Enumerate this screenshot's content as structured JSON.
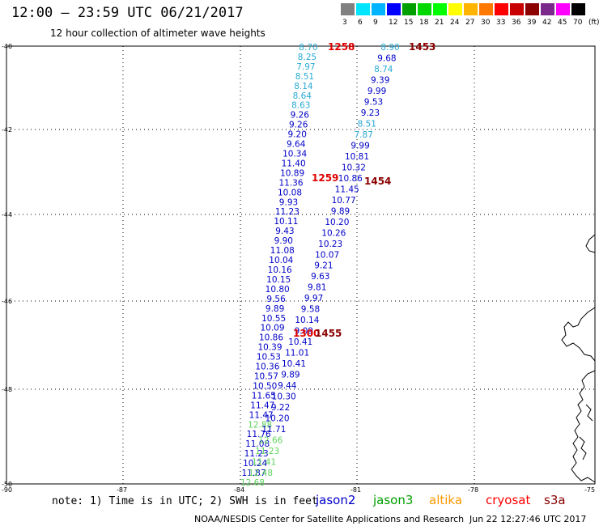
{
  "header": {
    "title": "12:00 – 23:59 UTC 06/21/2017",
    "subtitle": "12 hour collection of altimeter wave heights"
  },
  "legend": {
    "colors": [
      "#808080",
      "#00e5ff",
      "#00b4ff",
      "#0000ff",
      "#009f00",
      "#00d800",
      "#00ff00",
      "#ffff00",
      "#ffb400",
      "#ff7800",
      "#ff0000",
      "#c80000",
      "#8c0000",
      "#7a2a8a",
      "#ff00ff",
      "#000000"
    ],
    "labels": [
      "3",
      "6",
      "9",
      "12",
      "15",
      "18",
      "21",
      "24",
      "27",
      "30",
      "33",
      "36",
      "39",
      "42",
      "45",
      "70",
      "(ft)"
    ]
  },
  "axes": {
    "lat_labels": [
      "-40",
      "-42",
      "-44",
      "-46",
      "-48",
      "-50"
    ],
    "lon_labels": [
      "-90",
      "-87",
      "-84",
      "-81",
      "-78",
      "-75"
    ]
  },
  "track_colors": {
    "cyan": "#29a9d4",
    "blue": "#0000c8",
    "green": "#5fd35f",
    "red": "#e00000",
    "darkred": "#8b0000"
  },
  "time_labels": [
    {
      "text": "1258",
      "color": "red"
    },
    {
      "text": "1453",
      "color": "darkred"
    },
    {
      "text": "1259",
      "color": "red"
    },
    {
      "text": "1454",
      "color": "darkred"
    },
    {
      "text": "1300",
      "color": "red"
    },
    {
      "text": "1455",
      "color": "darkred"
    }
  ],
  "track_a": [
    {
      "v": "8.70",
      "c": "cyan"
    },
    {
      "v": "8.25",
      "c": "cyan"
    },
    {
      "v": "7.97",
      "c": "cyan"
    },
    {
      "v": "8.51",
      "c": "cyan"
    },
    {
      "v": "8.14",
      "c": "cyan"
    },
    {
      "v": "8.64",
      "c": "cyan"
    },
    {
      "v": "8.63",
      "c": "cyan"
    },
    {
      "v": "9.26",
      "c": "blue"
    },
    {
      "v": "9.26",
      "c": "blue"
    },
    {
      "v": "9.20",
      "c": "blue"
    },
    {
      "v": "9.64",
      "c": "blue"
    },
    {
      "v": "10.34",
      "c": "blue"
    },
    {
      "v": "11.40",
      "c": "blue"
    },
    {
      "v": "10.89",
      "c": "blue"
    },
    {
      "v": "11.36",
      "c": "blue"
    },
    {
      "v": "10.08",
      "c": "blue"
    },
    {
      "v": "9.93",
      "c": "blue"
    },
    {
      "v": "11.23",
      "c": "blue"
    },
    {
      "v": "10.11",
      "c": "blue"
    },
    {
      "v": "9.43",
      "c": "blue"
    },
    {
      "v": "9.90",
      "c": "blue"
    },
    {
      "v": "11.08",
      "c": "blue"
    },
    {
      "v": "10.04",
      "c": "blue"
    },
    {
      "v": "10.16",
      "c": "blue"
    },
    {
      "v": "10.15",
      "c": "blue"
    },
    {
      "v": "10.80",
      "c": "blue"
    },
    {
      "v": "9.56",
      "c": "blue"
    },
    {
      "v": "9.89",
      "c": "blue"
    },
    {
      "v": "10.55",
      "c": "blue"
    },
    {
      "v": "10.09",
      "c": "blue"
    },
    {
      "v": "10.86",
      "c": "blue"
    },
    {
      "v": "10.39",
      "c": "blue"
    },
    {
      "v": "10.53",
      "c": "blue"
    },
    {
      "v": "10.36",
      "c": "blue"
    },
    {
      "v": "10.57",
      "c": "blue"
    },
    {
      "v": "10.50",
      "c": "blue"
    },
    {
      "v": "11.65",
      "c": "blue"
    },
    {
      "v": "11.47",
      "c": "blue"
    },
    {
      "v": "11.47",
      "c": "blue"
    },
    {
      "v": "12.88",
      "c": "green"
    },
    {
      "v": "11.76",
      "c": "blue"
    },
    {
      "v": "11.08",
      "c": "blue"
    },
    {
      "v": "11.23",
      "c": "blue"
    },
    {
      "v": "10.24",
      "c": "blue"
    },
    {
      "v": "11.87",
      "c": "blue"
    },
    {
      "v": "12.68",
      "c": "green"
    }
  ],
  "track_b": [
    {
      "v": "8.90",
      "c": "cyan"
    },
    {
      "v": "9.68",
      "c": "blue"
    },
    {
      "v": "8.74",
      "c": "cyan"
    },
    {
      "v": "9.39",
      "c": "blue"
    },
    {
      "v": "9.99",
      "c": "blue"
    },
    {
      "v": "9.53",
      "c": "blue"
    },
    {
      "v": "9.23",
      "c": "blue"
    },
    {
      "v": "8.51",
      "c": "cyan"
    },
    {
      "v": "7.87",
      "c": "cyan"
    },
    {
      "v": "9.99",
      "c": "blue"
    },
    {
      "v": "10.81",
      "c": "blue"
    },
    {
      "v": "10.32",
      "c": "blue"
    },
    {
      "v": "10.86",
      "c": "blue"
    },
    {
      "v": "11.45",
      "c": "blue"
    },
    {
      "v": "10.77",
      "c": "blue"
    },
    {
      "v": "9.89",
      "c": "blue"
    },
    {
      "v": "10.20",
      "c": "blue"
    },
    {
      "v": "10.26",
      "c": "blue"
    },
    {
      "v": "10.23",
      "c": "blue"
    },
    {
      "v": "10.07",
      "c": "blue"
    },
    {
      "v": "9.21",
      "c": "blue"
    },
    {
      "v": "9.63",
      "c": "blue"
    },
    {
      "v": "9.81",
      "c": "blue"
    },
    {
      "v": "9.97",
      "c": "blue"
    },
    {
      "v": "9.58",
      "c": "blue"
    },
    {
      "v": "10.14",
      "c": "blue"
    },
    {
      "v": "9.09",
      "c": "blue"
    },
    {
      "v": "10.41",
      "c": "blue"
    },
    {
      "v": "11.01",
      "c": "blue"
    },
    {
      "v": "10.41",
      "c": "blue"
    },
    {
      "v": "9.89",
      "c": "blue"
    },
    {
      "v": "9.44",
      "c": "blue"
    },
    {
      "v": "10.30",
      "c": "blue"
    },
    {
      "v": "9.22",
      "c": "blue"
    },
    {
      "v": "10.20",
      "c": "blue"
    },
    {
      "v": "11.71",
      "c": "blue"
    },
    {
      "v": "12.66",
      "c": "green"
    },
    {
      "v": "11.23",
      "c": "green"
    },
    {
      "v": "11.41",
      "c": "green"
    },
    {
      "v": "12.48",
      "c": "green"
    }
  ],
  "footer": {
    "note": "note: 1) Time is in UTC; 2) SWH is in feet",
    "satellites": [
      {
        "name": "jason2",
        "color": "#0000c8"
      },
      {
        "name": "jason3",
        "color": "#00a000"
      },
      {
        "name": "altika",
        "color": "#ff9900"
      },
      {
        "name": "cryosat",
        "color": "#ff0000"
      },
      {
        "name": "s3a",
        "color": "#8b0000"
      }
    ],
    "credit": "NOAA/NESDIS Center for Satellite Applications and Research",
    "stamp": "Jun 22 12:27:46 UTC 2017"
  }
}
